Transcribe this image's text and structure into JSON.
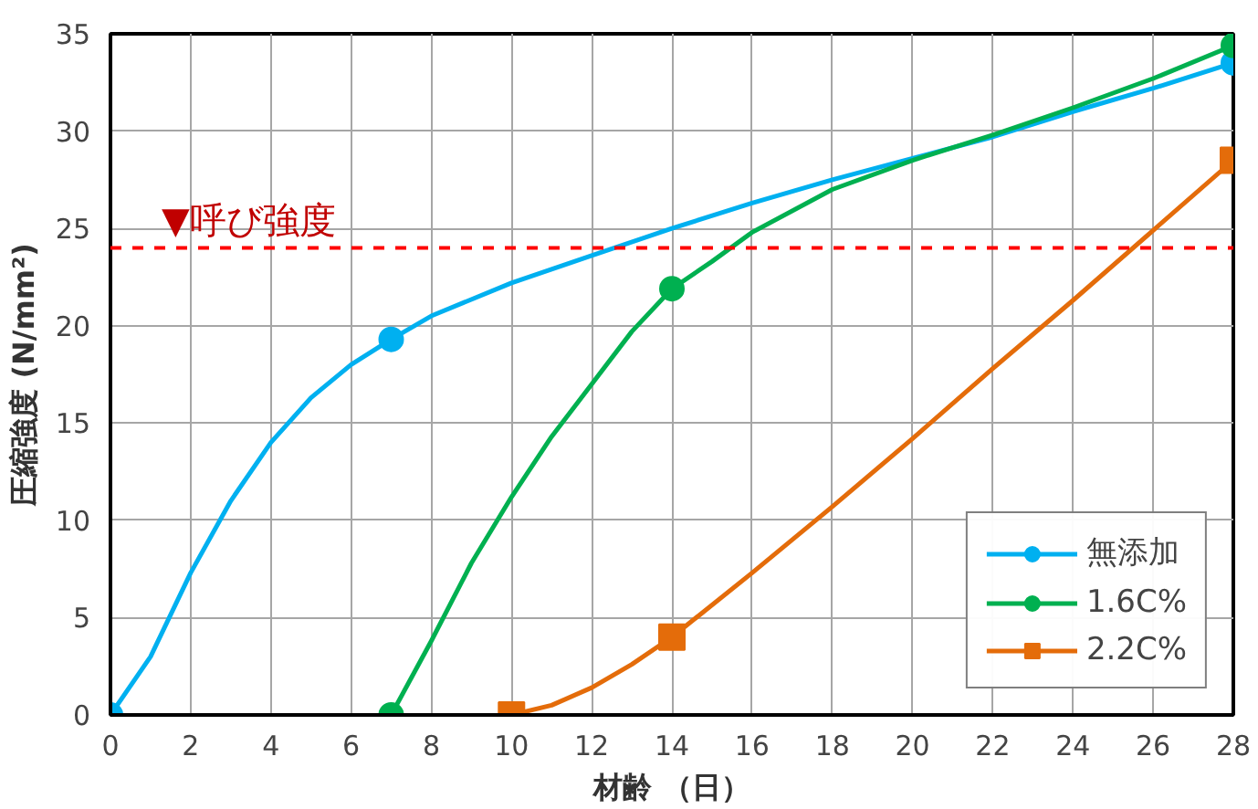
{
  "chart_data": {
    "type": "line",
    "xlabel": "材齢 （日）",
    "ylabel": "圧縮強度 (N/mm²)",
    "xlim": [
      0,
      28
    ],
    "xticks": [
      0,
      2,
      4,
      6,
      8,
      10,
      12,
      14,
      16,
      18,
      20,
      22,
      24,
      26,
      28
    ],
    "ylim": [
      0,
      35
    ],
    "yticks": [
      0,
      5,
      10,
      15,
      20,
      25,
      30,
      35
    ],
    "grid": true,
    "legend": "bottom right",
    "line_style": "solid",
    "series": [
      {
        "name": "無添加",
        "color": "#00b0f0",
        "x": [
          0,
          1,
          2,
          3,
          4,
          5,
          6,
          7,
          8,
          10,
          12,
          14,
          16,
          18,
          20,
          22,
          24,
          26,
          28
        ],
        "values": [
          0,
          3,
          7.3,
          11,
          14,
          16.3,
          18,
          19.3,
          20.5,
          22.2,
          23.6,
          25,
          26.3,
          27.5,
          28.6,
          29.7,
          31,
          32.2,
          33.5
        ]
      },
      {
        "type": "scatter",
        "color": "#00b0f0",
        "marker": "circle",
        "x": [
          0,
          7,
          28
        ],
        "values": [
          0,
          19.3,
          33.5
        ]
      },
      {
        "name": "1.6C%",
        "color": "#00b050",
        "x": [
          7,
          8,
          9,
          10,
          11,
          12,
          13,
          14,
          15,
          16,
          18,
          20,
          22,
          24,
          26,
          28
        ],
        "values": [
          0,
          3.8,
          7.8,
          11.2,
          14.3,
          17,
          19.7,
          21.9,
          23.3,
          24.8,
          27,
          28.5,
          29.8,
          31.2,
          32.7,
          34.4
        ]
      },
      {
        "type": "scatter",
        "color": "#00b050",
        "marker": "circle",
        "x": [
          7,
          14,
          28
        ],
        "values": [
          0,
          21.9,
          34.4
        ]
      },
      {
        "name": "2.2C%",
        "color": "#e46c0a",
        "x": [
          10,
          11,
          12,
          13,
          14,
          16,
          18,
          20,
          22,
          24,
          26,
          28
        ],
        "values": [
          0,
          0.5,
          1.4,
          2.6,
          4,
          7.3,
          10.7,
          14.2,
          17.8,
          21.3,
          24.9,
          28.5
        ]
      },
      {
        "type": "scatter",
        "color": "#e46c0a",
        "marker": "square",
        "x": [
          10,
          14,
          28
        ],
        "values": [
          0,
          4,
          28.5
        ]
      }
    ],
    "ref_lines": [
      {
        "axis": "y",
        "value": 24,
        "label": "▼呼び強度",
        "color": "#ff0000",
        "line_style": "dashed"
      }
    ]
  }
}
